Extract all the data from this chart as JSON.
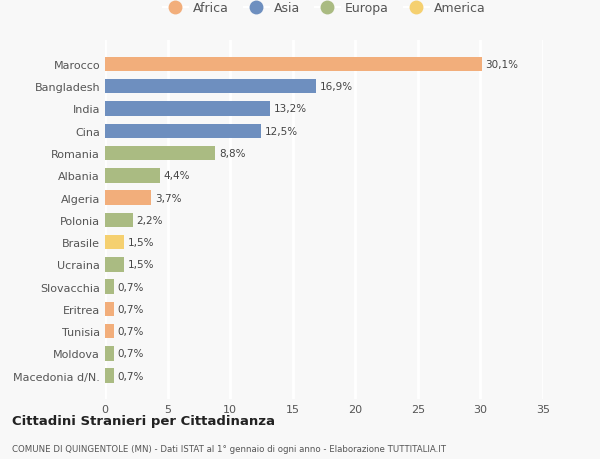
{
  "categories": [
    "Marocco",
    "Bangladesh",
    "India",
    "Cina",
    "Romania",
    "Albania",
    "Algeria",
    "Polonia",
    "Brasile",
    "Ucraina",
    "Slovacchia",
    "Eritrea",
    "Tunisia",
    "Moldova",
    "Macedonia d/N."
  ],
  "values": [
    30.1,
    16.9,
    13.2,
    12.5,
    8.8,
    4.4,
    3.7,
    2.2,
    1.5,
    1.5,
    0.7,
    0.7,
    0.7,
    0.7,
    0.7
  ],
  "labels": [
    "30,1%",
    "16,9%",
    "13,2%",
    "12,5%",
    "8,8%",
    "4,4%",
    "3,7%",
    "2,2%",
    "1,5%",
    "1,5%",
    "0,7%",
    "0,7%",
    "0,7%",
    "0,7%",
    "0,7%"
  ],
  "continents": [
    "Africa",
    "Asia",
    "Asia",
    "Asia",
    "Europa",
    "Europa",
    "Africa",
    "Europa",
    "America",
    "Europa",
    "Europa",
    "Africa",
    "Africa",
    "Europa",
    "Europa"
  ],
  "continent_colors": {
    "Africa": "#F2AE7B",
    "Asia": "#6E8FBF",
    "Europa": "#AABB82",
    "America": "#F5D070"
  },
  "legend_order": [
    "Africa",
    "Asia",
    "Europa",
    "America"
  ],
  "xlim": [
    0,
    35
  ],
  "xticks": [
    0,
    5,
    10,
    15,
    20,
    25,
    30,
    35
  ],
  "title": "Cittadini Stranieri per Cittadinanza",
  "subtitle": "COMUNE DI QUINGENTOLE (MN) - Dati ISTAT al 1° gennaio di ogni anno - Elaborazione TUTTITALIA.IT",
  "bg_color": "#f8f8f8",
  "grid_color": "#ffffff",
  "bar_height": 0.65
}
